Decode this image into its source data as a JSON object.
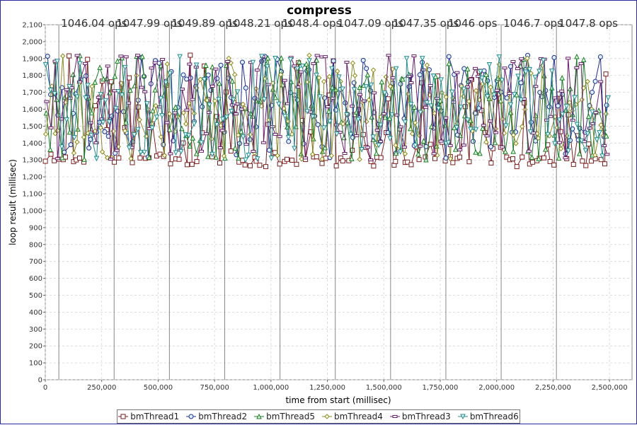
{
  "chart_data": {
    "type": "line",
    "title": "compress",
    "xlabel": "time from start (millisec)",
    "ylabel": "loop result (millisec)",
    "xlim": [
      0,
      2600000
    ],
    "ylim": [
      0,
      2100
    ],
    "x_ticks": [
      0,
      250000,
      500000,
      750000,
      1000000,
      1250000,
      1500000,
      1750000,
      2000000,
      2250000,
      2500000
    ],
    "x_tick_labels": [
      "0",
      "250,000",
      "500,000",
      "750,000",
      "1,000,000",
      "1,250,000",
      "1,500,000",
      "1,750,000",
      "2,000,000",
      "2,250,000",
      "2,500,000"
    ],
    "y_ticks": [
      0,
      100,
      200,
      300,
      400,
      500,
      600,
      700,
      800,
      900,
      1000,
      1100,
      1200,
      1300,
      1400,
      1500,
      1600,
      1700,
      1800,
      1900,
      2000,
      2100
    ],
    "y_tick_labels": [
      "0",
      "100",
      "200",
      "300",
      "400",
      "500",
      "600",
      "700",
      "800",
      "900",
      "1,000",
      "1,100",
      "1,200",
      "1,300",
      "1,400",
      "1,500",
      "1,600",
      "1,700",
      "1,800",
      "1,900",
      "2,000",
      "2,100"
    ],
    "grid": true,
    "legend_position": "bottom",
    "x_range": [
      0,
      2500000
    ],
    "y_range_min": 1260,
    "y_range_max": 1920,
    "series": [
      {
        "name": "bmThread1",
        "color": "#7a1f1f",
        "marker": "square"
      },
      {
        "name": "bmThread2",
        "color": "#1f2f8a",
        "marker": "circle"
      },
      {
        "name": "bmThread5",
        "color": "#1f7a2a",
        "marker": "triangle-up"
      },
      {
        "name": "bmThread4",
        "color": "#8a8a2a",
        "marker": "diamond"
      },
      {
        "name": "bmThread3",
        "color": "#6a1f6a",
        "marker": "minus"
      },
      {
        "name": "bmThread6",
        "color": "#2a8a8a",
        "marker": "triangle-down"
      }
    ],
    "markers": [
      {
        "x": 60000,
        "label": "1046.04 ops"
      },
      {
        "x": 305000,
        "label": "1047.99 ops"
      },
      {
        "x": 550000,
        "label": "1049.89 ops"
      },
      {
        "x": 795000,
        "label": "1048.21 ops"
      },
      {
        "x": 1040000,
        "label": "1048.4 ops"
      },
      {
        "x": 1285000,
        "label": "1047.09 ops"
      },
      {
        "x": 1530000,
        "label": "1047.35 ops"
      },
      {
        "x": 1775000,
        "label": "1046 ops"
      },
      {
        "x": 2020000,
        "label": "1046.7 ops"
      },
      {
        "x": 2265000,
        "label": "1047.8 ops"
      }
    ]
  }
}
